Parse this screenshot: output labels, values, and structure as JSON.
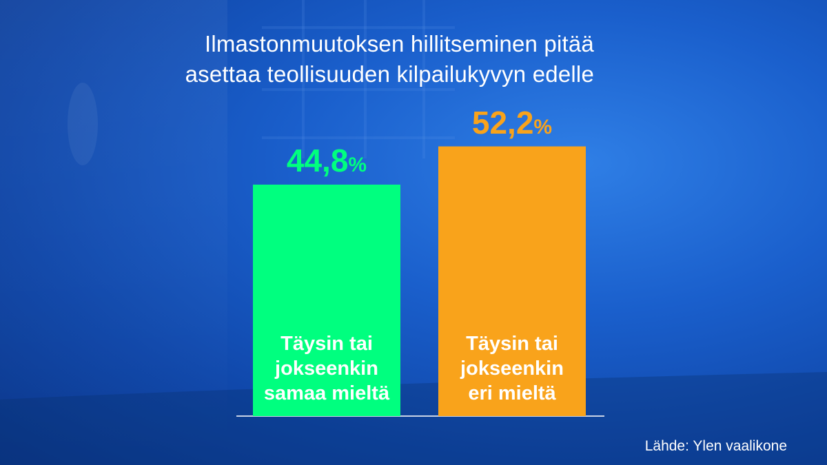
{
  "title_lines": [
    "Ilmastonmuutoksen hillitseminen pitää",
    "asettaa teollisuuden kilpailukyvyn edelle"
  ],
  "source": "Lähde: Ylen vaalikone",
  "colors": {
    "agree": "#00ff7f",
    "disagree": "#f9a31b",
    "text": "#ffffff",
    "baseline": "#c9d3e6"
  },
  "chart_data": {
    "type": "bar",
    "title": "Ilmastonmuutoksen hillitseminen pitää asettaa teollisuuden kilpailukyvyn edelle",
    "categories": [
      "Täysin tai jokseenkin samaa mieltä",
      "Täysin tai jokseenkin eri mieltä"
    ],
    "values": [
      44.8,
      52.2
    ],
    "value_labels": [
      "44,8",
      "52,2"
    ],
    "unit": "%",
    "label_lines": [
      [
        "Täysin tai",
        "jokseenkin",
        "samaa mieltä"
      ],
      [
        "Täysin tai",
        "jokseenkin",
        "eri mieltä"
      ]
    ],
    "ylim": [
      0,
      100
    ],
    "grid": false,
    "legend": "none"
  }
}
